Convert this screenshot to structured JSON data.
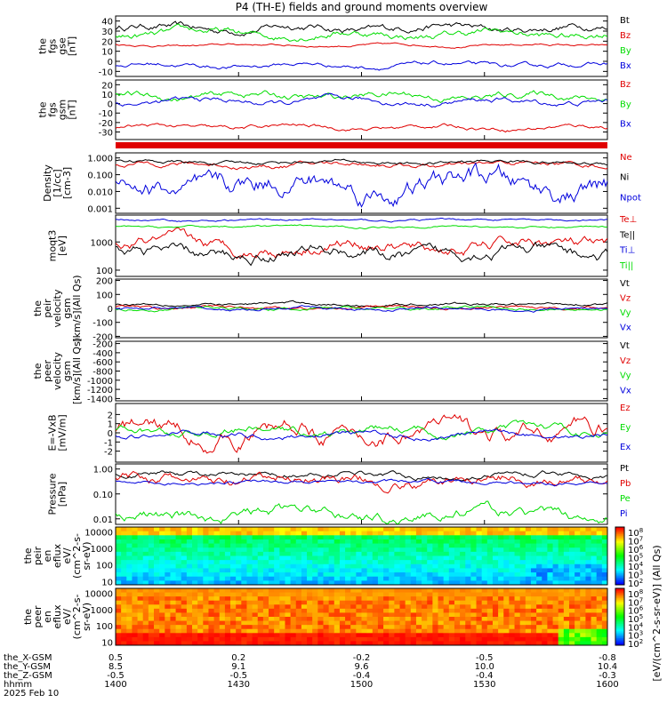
{
  "title": "P4 (TH-E) fields and ground moments overview",
  "time_label_left": [
    "the_X-GSM",
    "the_Y-GSM",
    "the_Z-GSM",
    "hhmm",
    "2025 Feb 10"
  ],
  "time_ticks": [
    {
      "hhmm": "1400",
      "x": "8.5",
      "y": "-0.5",
      "z": "0.5",
      "t": 0
    },
    {
      "hhmm": "1430",
      "x": "9.1",
      "y": "-0.5",
      "z": "0.2",
      "t": 30
    },
    {
      "hhmm": "1500",
      "x": "9.6",
      "y": "-0.4",
      "z": "-0.2",
      "t": 60
    },
    {
      "hhmm": "1530",
      "x": "10.0",
      "y": "-0.4",
      "z": "-0.5",
      "t": 90
    },
    {
      "hhmm": "1600",
      "x": "10.4",
      "y": "-0.3",
      "z": "-0.8",
      "t": 120
    }
  ],
  "colorbar": {
    "upper_ticks": [
      "10^8",
      "10^7",
      "10^6",
      "10^5",
      "10^4",
      "10^3",
      "10^2"
    ],
    "lower_ticks": [
      "10^8",
      "10^7",
      "10^6",
      "10^5",
      "10^4",
      "10^3",
      "10^2"
    ],
    "label": "[eV/(cm^2-s-sr-eV)] (All Qs)"
  },
  "chart_data": [
    {
      "id": "fgs_gse",
      "type": "line",
      "ylabel": [
        "the",
        "fgs",
        "gse",
        "[nT]"
      ],
      "ylim": [
        -15,
        45
      ],
      "yticks": [
        "40",
        "30",
        "20",
        "10",
        "0",
        "-10"
      ],
      "ytick_values": [
        40,
        30,
        20,
        10,
        0,
        -10
      ],
      "series": [
        {
          "name": "Bt",
          "color": "#000000",
          "level": 33,
          "amp": 5
        },
        {
          "name": "Bz",
          "color": "#e00000",
          "level": 16,
          "amp": 1.5
        },
        {
          "name": "By",
          "color": "#00dd00",
          "level": 27,
          "amp": 5
        },
        {
          "name": "Bx",
          "color": "#0000dd",
          "level": -4,
          "amp": 3
        }
      ]
    },
    {
      "id": "fgs_gsm",
      "type": "line",
      "ylabel": [
        "the",
        "fgs",
        "gsm",
        "[nT]"
      ],
      "ylim": [
        -38,
        25
      ],
      "yticks": [
        "20",
        "10",
        "0",
        "-10",
        "-20",
        "-30"
      ],
      "ytick_values": [
        20,
        10,
        0,
        -10,
        -20,
        -30
      ],
      "series": [
        {
          "name": "Bz",
          "color": "#e00000",
          "level": -25,
          "amp": 3
        },
        {
          "name": "By",
          "color": "#00dd00",
          "level": 8,
          "amp": 5
        },
        {
          "name": "Bx",
          "color": "#0000dd",
          "level": 2,
          "amp": 4
        }
      ]
    },
    {
      "id": "density",
      "type": "line",
      "log": true,
      "ylabel": [
        "Density",
        "[1/cc]",
        "[cm-3]"
      ],
      "ylim": [
        0.0005,
        2
      ],
      "yticks": [
        "1.000",
        "0.100",
        "0.010",
        "0.001"
      ],
      "ytick_values": [
        1,
        0.1,
        0.01,
        0.001
      ],
      "series": [
        {
          "name": "Ne",
          "color": "#e00000",
          "level": 0.4,
          "amp": 0.2
        },
        {
          "name": "Ni",
          "color": "#000000",
          "level": 0.55,
          "amp": 0.15
        },
        {
          "name": "Npot",
          "color": "#0000dd",
          "level": 0.02,
          "amp": 0.9
        }
      ]
    },
    {
      "id": "temperature",
      "type": "line",
      "log": true,
      "ylabel": [
        "moqt3",
        "[eV]"
      ],
      "ylim": [
        60,
        9000
      ],
      "yticks": [
        "1000",
        "100"
      ],
      "ytick_values": [
        1000,
        100
      ],
      "series": [
        {
          "name": "Te⊥",
          "color": "#e00000",
          "level": 700,
          "amp": 0.3
        },
        {
          "name": "Te||",
          "color": "#000000",
          "level": 400,
          "amp": 0.3
        },
        {
          "name": "Ti⊥",
          "color": "#0000dd",
          "level": 6000,
          "amp": 0.05
        },
        {
          "name": "Ti||",
          "color": "#00dd00",
          "level": 3500,
          "amp": 0.05
        }
      ]
    },
    {
      "id": "peir_velocity",
      "type": "line",
      "ylabel": [
        "the",
        "peir",
        "velocity",
        "gsm",
        "[km/s](All Qs)"
      ],
      "ylim": [
        -210,
        210
      ],
      "yticks": [
        "200",
        "100",
        "0",
        "-100",
        "-200"
      ],
      "ytick_values": [
        200,
        100,
        0,
        -100,
        -200
      ],
      "series": [
        {
          "name": "Vt",
          "color": "#000000",
          "level": 30,
          "amp": 15
        },
        {
          "name": "Vz",
          "color": "#e00000",
          "level": 5,
          "amp": 15
        },
        {
          "name": "Vy",
          "color": "#00dd00",
          "level": 0,
          "amp": 15
        },
        {
          "name": "Vx",
          "color": "#0000dd",
          "level": -5,
          "amp": 15
        }
      ]
    },
    {
      "id": "peer_velocity",
      "type": "line",
      "ylabel": [
        "the",
        "peer",
        "velocity",
        "gsm",
        "[km/s](All Qs)"
      ],
      "ylim": [
        -1450,
        -150
      ],
      "yticks": [
        "-200",
        "-400",
        "-600",
        "-800",
        "-1000",
        "-1200",
        "-1400"
      ],
      "ytick_values": [
        -200,
        -400,
        -600,
        -800,
        -1000,
        -1200,
        -1400
      ],
      "series": [
        {
          "name": "Vt",
          "color": "#000000"
        },
        {
          "name": "Vz",
          "color": "#e00000"
        },
        {
          "name": "Vy",
          "color": "#00dd00"
        },
        {
          "name": "Vx",
          "color": "#0000dd"
        }
      ]
    },
    {
      "id": "efield",
      "type": "line",
      "ylabel": [
        "E=-VxB",
        "[mV/m]"
      ],
      "ylim": [
        -3.2,
        3.2
      ],
      "yticks": [
        "2",
        "1",
        "0",
        "-1",
        "-2"
      ],
      "ytick_values": [
        2,
        1,
        0,
        -1,
        -2
      ],
      "series": [
        {
          "name": "Ez",
          "color": "#e00000",
          "level": 0,
          "amp": 1.3
        },
        {
          "name": "Ey",
          "color": "#00dd00",
          "level": 0.2,
          "amp": 0.6
        },
        {
          "name": "Ex",
          "color": "#0000dd",
          "level": -0.2,
          "amp": 0.4
        }
      ]
    },
    {
      "id": "pressure",
      "type": "line",
      "log": true,
      "ylabel": [
        "Pressure",
        "[nPa]"
      ],
      "ylim": [
        0.006,
        1.6
      ],
      "yticks": [
        "1.00",
        "0.10",
        "0.01"
      ],
      "ytick_values": [
        1,
        0.1,
        0.01
      ],
      "series": [
        {
          "name": "Pt",
          "color": "#000000",
          "level": 0.6,
          "amp": 0.15
        },
        {
          "name": "Pb",
          "color": "#e00000",
          "level": 0.35,
          "amp": 0.3
        },
        {
          "name": "Pe",
          "color": "#00dd00",
          "level": 0.015,
          "amp": 0.3
        },
        {
          "name": "Pi",
          "color": "#0000dd",
          "level": 0.3,
          "amp": 0.1
        }
      ]
    },
    {
      "id": "peir_spec",
      "type": "heatmap",
      "ylabel": [
        "the",
        "peir",
        "en",
        "eflux",
        "eV/",
        "(cm^2-s-",
        "sr-eV)"
      ],
      "yticks": [
        "10000",
        "1000",
        "100",
        "10"
      ]
    },
    {
      "id": "peer_spec",
      "type": "heatmap",
      "ylabel": [
        "the",
        "peer",
        "en",
        "eflux",
        "eV/",
        "(cm^2-s-",
        "sr-eV)"
      ],
      "yticks": [
        "10000",
        "1000",
        "100",
        "10"
      ]
    }
  ]
}
